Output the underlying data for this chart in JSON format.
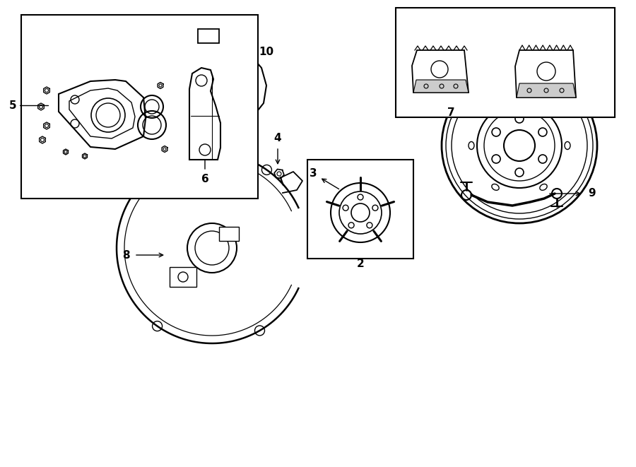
{
  "background_color": "#ffffff",
  "line_color": "#000000",
  "fig_width": 9.0,
  "fig_height": 6.61
}
